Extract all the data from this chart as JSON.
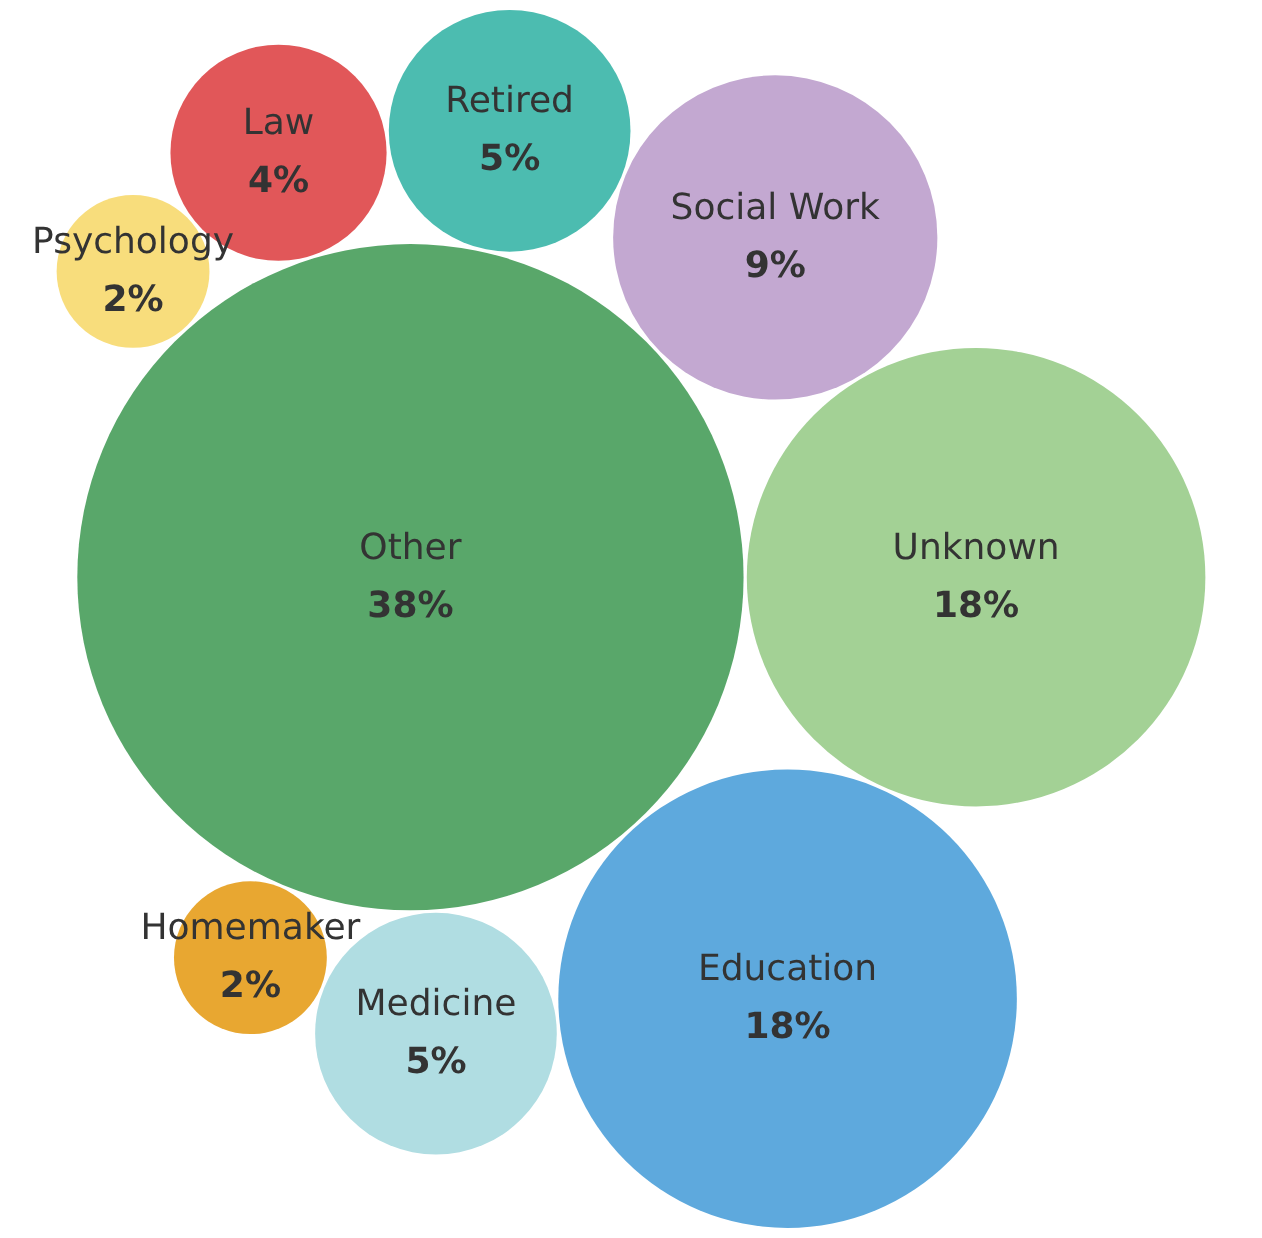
{
  "chart_data": {
    "type": "other",
    "categories": [
      "Unknown",
      "Medicine",
      "Education",
      "Homemaker",
      "Other",
      "Law",
      "Psychology",
      "Social Work",
      "Retired"
    ],
    "values": [
      18,
      5,
      18,
      2,
      38,
      4,
      2,
      9,
      5
    ],
    "value_labels": [
      "18%",
      "5%",
      "18%",
      "2%",
      "38%",
      "4%",
      "2%",
      "9%",
      "5%"
    ],
    "colors": [
      "#a3d195",
      "#b0dde2",
      "#5ea9dd",
      "#e8a731",
      "#59a76a",
      "#e15759",
      "#f8dd7c",
      "#c3a8d1",
      "#4cbcb0"
    ]
  }
}
